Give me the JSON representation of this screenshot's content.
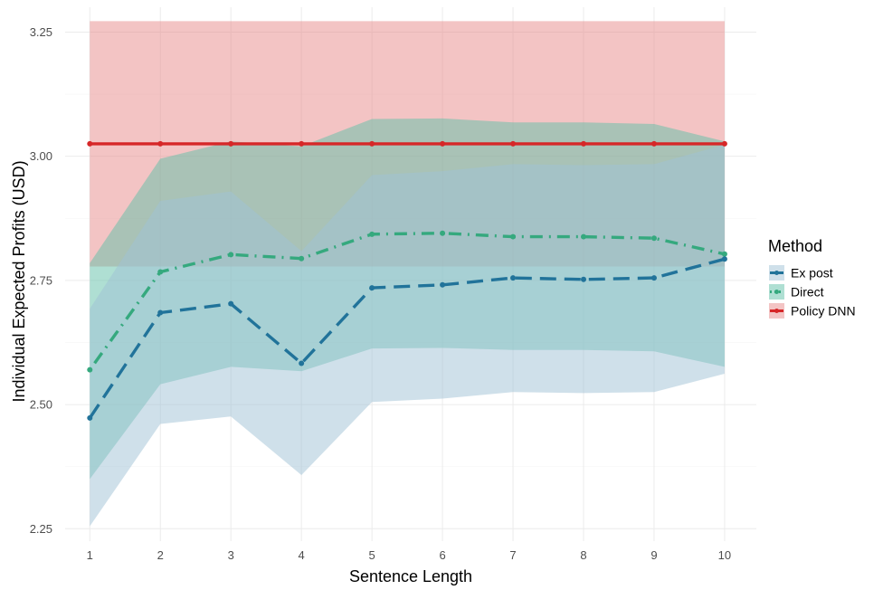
{
  "chart_data": {
    "type": "line",
    "xlabel": "Sentence Length",
    "ylabel": "Individual Expected Profits (USD)",
    "x": [
      1,
      2,
      3,
      4,
      5,
      6,
      7,
      8,
      9,
      10
    ],
    "xlim": [
      0.65,
      10.45
    ],
    "ylim": [
      2.225,
      3.3
    ],
    "x_ticks": [
      1,
      2,
      3,
      4,
      5,
      6,
      7,
      8,
      9,
      10
    ],
    "y_ticks": [
      2.25,
      2.5,
      2.75,
      3.0,
      3.25
    ],
    "y_tick_labels": [
      "2.25",
      "2.50",
      "2.75",
      "3.00",
      "3.25"
    ],
    "grid": true,
    "legend": {
      "title": "Method",
      "position": "right"
    },
    "series": [
      {
        "name": "Policy DNN",
        "color": "#d62728",
        "line_style": "solid",
        "values": [
          3.025,
          3.025,
          3.025,
          3.025,
          3.025,
          3.025,
          3.025,
          3.025,
          3.025,
          3.025
        ],
        "band_lower": [
          2.778,
          2.778,
          2.778,
          2.778,
          2.778,
          2.778,
          2.778,
          2.778,
          2.778,
          2.778
        ],
        "band_upper": [
          3.272,
          3.272,
          3.272,
          3.272,
          3.272,
          3.272,
          3.272,
          3.272,
          3.272,
          3.272
        ],
        "band_color": "#e8898a"
      },
      {
        "name": "Direct",
        "color": "#35a97e",
        "line_style": "dotdash",
        "values": [
          2.57,
          2.767,
          2.802,
          2.794,
          2.843,
          2.845,
          2.838,
          2.838,
          2.835,
          2.803
        ],
        "band_lower": [
          2.35,
          2.541,
          2.576,
          2.567,
          2.613,
          2.614,
          2.61,
          2.61,
          2.607,
          2.576
        ],
        "band_upper": [
          2.785,
          2.995,
          3.03,
          3.02,
          3.075,
          3.076,
          3.068,
          3.068,
          3.065,
          3.03
        ],
        "band_color": "#5fbfa8"
      },
      {
        "name": "Ex post",
        "color": "#21739a",
        "line_style": "longdash",
        "values": [
          2.473,
          2.685,
          2.703,
          2.583,
          2.735,
          2.741,
          2.755,
          2.752,
          2.755,
          2.793
        ],
        "band_lower": [
          2.255,
          2.461,
          2.476,
          2.358,
          2.505,
          2.512,
          2.525,
          2.523,
          2.525,
          2.562
        ],
        "band_upper": [
          2.693,
          2.91,
          2.929,
          2.809,
          2.962,
          2.97,
          2.984,
          2.982,
          2.984,
          3.023
        ],
        "band_color": "#9fc1d5"
      }
    ]
  }
}
